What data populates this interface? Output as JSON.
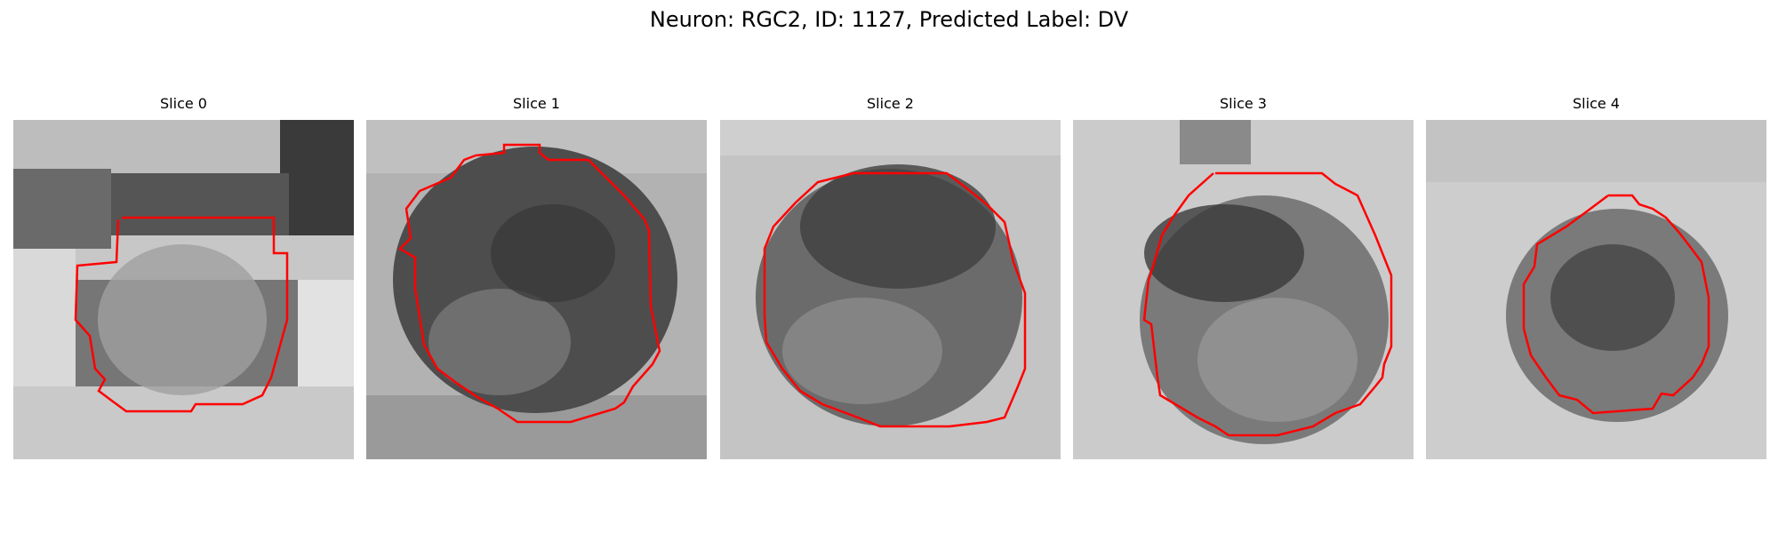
{
  "figure": {
    "title": "Neuron: RGC2, ID: 1127, Predicted Label: DV"
  },
  "contour_color": "#ff0000",
  "panels": [
    {
      "title": "Slice 0"
    },
    {
      "title": "Slice 1"
    },
    {
      "title": "Slice 2"
    },
    {
      "title": "Slice 3"
    },
    {
      "title": "Slice 4"
    }
  ]
}
